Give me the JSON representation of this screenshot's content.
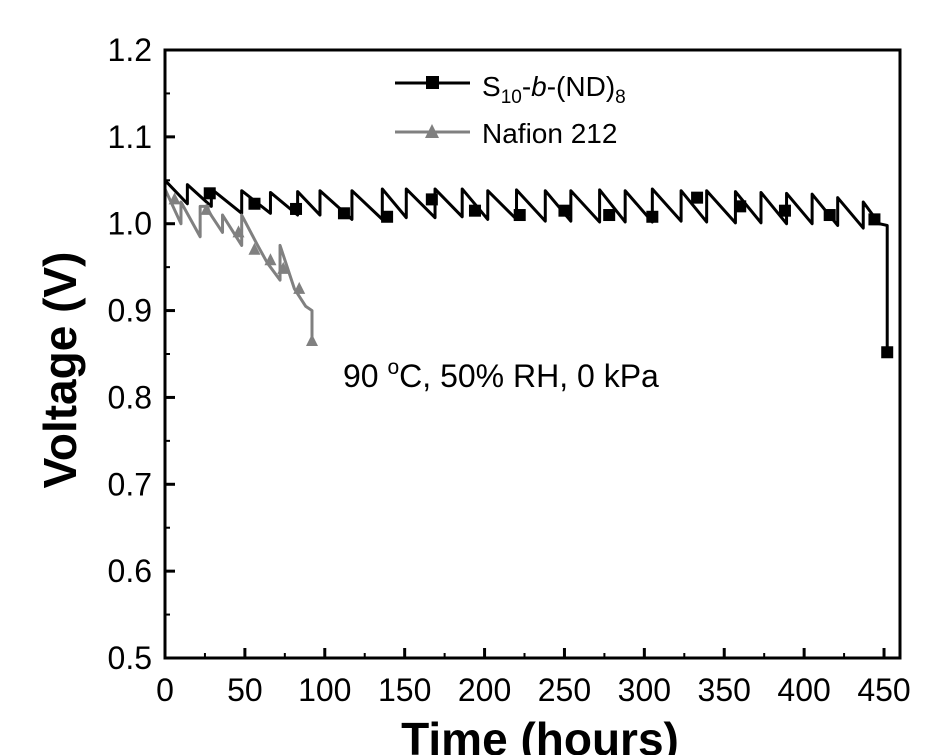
{
  "chart_data": {
    "type": "line",
    "xlabel": "Time (hours)",
    "ylabel": "Voltage (V)",
    "xlim": [
      0,
      460
    ],
    "ylim": [
      0.5,
      1.2
    ],
    "x_ticks": [
      0,
      50,
      100,
      150,
      200,
      250,
      300,
      350,
      400,
      450
    ],
    "y_ticks": [
      0.5,
      0.6,
      0.7,
      0.8,
      0.9,
      1.0,
      1.1,
      1.2
    ],
    "x_tick_labels": [
      "0",
      "50",
      "100",
      "150",
      "200",
      "250",
      "300",
      "350",
      "400",
      "450"
    ],
    "y_tick_labels": [
      "0.5",
      "0.6",
      "0.7",
      "0.8",
      "0.9",
      "1.0",
      "1.1",
      "1.2"
    ],
    "legend": {
      "placement": "top-center",
      "entries": [
        {
          "base": "S",
          "sub1": "10",
          "mid": "-",
          "italic": "b",
          "mid2": "-(ND)",
          "sub2": "8"
        },
        {
          "text": "Nafion 212"
        }
      ]
    },
    "annotation": {
      "prefix": "90 ",
      "sup": "o",
      "suffix": "C, 50% RH, 0 kPa"
    },
    "series": [
      {
        "name": "S10-b-(ND)8",
        "color": "#000000",
        "marker": "square",
        "x": [
          0,
          0,
          14,
          14,
          29,
          29,
          48,
          48,
          66,
          66,
          83,
          83,
          97,
          97,
          117,
          117,
          136,
          136,
          151,
          151,
          169,
          169,
          186,
          186,
          202,
          202,
          220,
          220,
          238,
          238,
          254,
          254,
          272,
          272,
          288,
          288,
          305,
          305,
          323,
          323,
          339,
          339,
          357,
          357,
          373,
          373,
          389,
          389,
          405,
          405,
          421,
          421,
          437,
          437,
          447,
          452,
          452
        ],
        "y": [
          1.0,
          1.05,
          1.023,
          1.045,
          1.02,
          1.04,
          1.012,
          1.038,
          1.012,
          1.036,
          1.01,
          1.037,
          1.01,
          1.038,
          1.005,
          1.038,
          1.005,
          1.04,
          1.007,
          1.04,
          1.007,
          1.04,
          1.008,
          1.04,
          1.005,
          1.038,
          1.005,
          1.039,
          1.003,
          1.038,
          1.003,
          1.038,
          1.002,
          1.039,
          1.002,
          1.038,
          1.002,
          1.04,
          1.003,
          1.038,
          1.002,
          1.038,
          1.001,
          1.037,
          1.001,
          1.036,
          1.0,
          1.035,
          1.0,
          1.034,
          0.998,
          1.03,
          0.995,
          1.025,
          1.0,
          0.998,
          0.85
        ],
        "marker_x": [
          28,
          56,
          82,
          112,
          139,
          167,
          194,
          222,
          250,
          278,
          305,
          333,
          360,
          388,
          416,
          444,
          452
        ],
        "marker_y": [
          1.035,
          1.023,
          1.017,
          1.012,
          1.008,
          1.028,
          1.015,
          1.01,
          1.015,
          1.01,
          1.008,
          1.03,
          1.02,
          1.015,
          1.01,
          1.005,
          0.852
        ]
      },
      {
        "name": "Nafion 212",
        "color": "#808080",
        "marker": "triangle",
        "x": [
          0,
          0,
          10,
          10,
          22,
          22,
          27,
          27,
          36,
          36,
          48,
          48,
          58,
          64,
          72,
          72,
          81,
          88,
          92,
          92
        ],
        "y": [
          1.01,
          1.04,
          1.0,
          1.025,
          0.985,
          1.02,
          1.02,
          1.015,
          0.99,
          1.01,
          0.975,
          1.01,
          0.975,
          0.955,
          0.935,
          0.975,
          0.925,
          0.905,
          0.9,
          0.862
        ],
        "marker_x": [
          6,
          26,
          46,
          56,
          66,
          74,
          84,
          92
        ],
        "marker_y": [
          1.028,
          1.016,
          0.99,
          0.97,
          0.958,
          0.948,
          0.925,
          0.865
        ]
      }
    ],
    "grid": false
  }
}
